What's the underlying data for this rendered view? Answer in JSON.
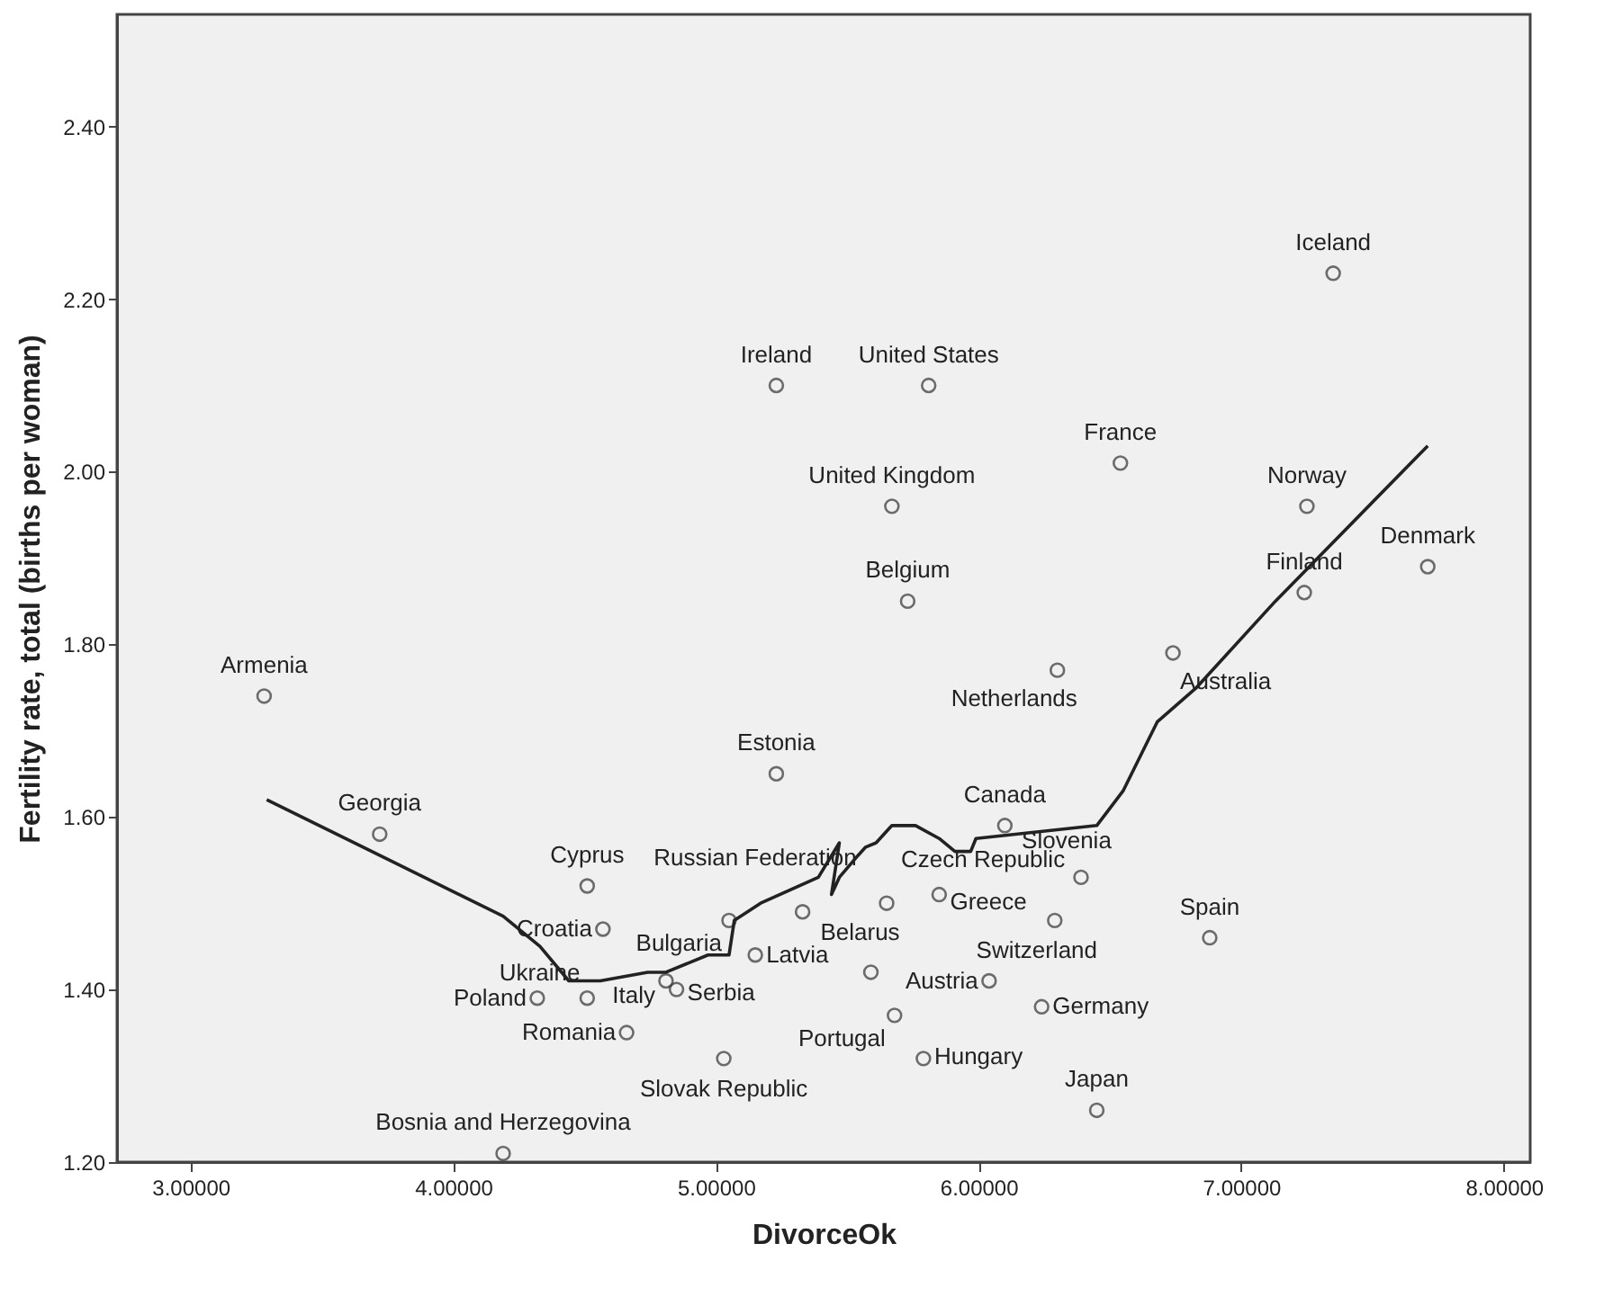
{
  "chart_data": {
    "type": "scatter",
    "xlabel": "DivorceOk",
    "ylabel": "Fertility rate, total (births per woman)",
    "xlim": [
      2.72,
      8.1
    ],
    "ylim": [
      1.2,
      2.53
    ],
    "xticks": [
      {
        "value": 3,
        "label": "3.00000"
      },
      {
        "value": 4,
        "label": "4.00000"
      },
      {
        "value": 5,
        "label": "5.00000"
      },
      {
        "value": 6,
        "label": "6.00000"
      },
      {
        "value": 7,
        "label": "7.00000"
      },
      {
        "value": 8,
        "label": "8.00000"
      }
    ],
    "yticks": [
      {
        "value": 1.2,
        "label": "1.20"
      },
      {
        "value": 1.4,
        "label": "1.40"
      },
      {
        "value": 1.6,
        "label": "1.60"
      },
      {
        "value": 1.8,
        "label": "1.80"
      },
      {
        "value": 2.0,
        "label": "2.00"
      },
      {
        "value": 2.2,
        "label": "2.20"
      },
      {
        "value": 2.4,
        "label": "2.40"
      }
    ],
    "grid": false,
    "marker": "circle",
    "series": [
      {
        "color": "#333333",
        "x": [
          3.28,
          3.72,
          4.51,
          4.57,
          4.19,
          4.32,
          4.51,
          5.05,
          4.81,
          4.85,
          4.66,
          5.03,
          5.15,
          5.33,
          5.23,
          5.65,
          5.85,
          6.29,
          5.59,
          6.04,
          5.68,
          5.79,
          6.24,
          6.45,
          6.1,
          6.39,
          6.3,
          6.88,
          6.74,
          7.35,
          5.23,
          5.81,
          6.54,
          5.67,
          7.25,
          7.71,
          7.24,
          5.73
        ],
        "values": [
          1.74,
          1.58,
          1.52,
          1.47,
          1.21,
          1.39,
          1.39,
          1.48,
          1.41,
          1.4,
          1.35,
          1.32,
          1.44,
          1.49,
          1.65,
          1.5,
          1.51,
          1.48,
          1.42,
          1.41,
          1.37,
          1.32,
          1.38,
          1.26,
          1.59,
          1.53,
          1.77,
          1.46,
          1.79,
          2.23,
          2.1,
          2.1,
          2.01,
          1.96,
          1.96,
          1.89,
          1.86,
          1.85
        ]
      },
      {
        "type": "line",
        "color": "#222222",
        "line_style": "solid",
        "marker": "none",
        "x": [
          3.29,
          3.69,
          4.19,
          4.33,
          4.44,
          4.56,
          4.74,
          4.81,
          4.97,
          5.05,
          5.07,
          5.17,
          5.39,
          5.47,
          5.44,
          5.47,
          5.54,
          5.57,
          5.61,
          5.67,
          5.76,
          5.85,
          5.91,
          5.97,
          5.99,
          6.45,
          6.55,
          6.68,
          6.83,
          7.13,
          7.71
        ],
        "values": [
          1.62,
          1.56,
          1.485,
          1.45,
          1.41,
          1.41,
          1.42,
          1.42,
          1.44,
          1.44,
          1.48,
          1.5,
          1.53,
          1.57,
          1.51,
          1.53,
          1.555,
          1.565,
          1.57,
          1.59,
          1.59,
          1.575,
          1.56,
          1.56,
          1.575,
          1.59,
          1.63,
          1.71,
          1.75,
          1.85,
          2.03
        ]
      }
    ],
    "annotations": [
      {
        "text": "Armenia",
        "x": 3.28,
        "y": 1.74
      },
      {
        "text": "Georgia",
        "x": 3.72,
        "y": 1.58
      },
      {
        "text": "Cyprus",
        "x": 4.51,
        "y": 1.52
      },
      {
        "text": "Croatia",
        "x": 4.57,
        "y": 1.47
      },
      {
        "text": "Bosnia and Herzegovina",
        "x": 4.19,
        "y": 1.21
      },
      {
        "text": "Poland",
        "x": 4.32,
        "y": 1.39
      },
      {
        "text": "Ukraine",
        "x": 4.51,
        "y": 1.39
      },
      {
        "text": "Bulgaria",
        "x": 5.05,
        "y": 1.48
      },
      {
        "text": "Italy",
        "x": 4.81,
        "y": 1.41
      },
      {
        "text": "Serbia",
        "x": 4.85,
        "y": 1.4
      },
      {
        "text": "Romania",
        "x": 4.66,
        "y": 1.35
      },
      {
        "text": "Slovak Republic",
        "x": 5.03,
        "y": 1.32
      },
      {
        "text": "Latvia",
        "x": 5.15,
        "y": 1.44
      },
      {
        "text": "Russian Federation",
        "x": 5.33,
        "y": 1.49
      },
      {
        "text": "Estonia",
        "x": 5.23,
        "y": 1.65
      },
      {
        "text": "Czech Republic",
        "x": 5.65,
        "y": 1.5
      },
      {
        "text": "Greece",
        "x": 5.85,
        "y": 1.51
      },
      {
        "text": "Switzerland",
        "x": 6.29,
        "y": 1.48
      },
      {
        "text": "Belarus",
        "x": 5.59,
        "y": 1.42
      },
      {
        "text": "Austria",
        "x": 6.04,
        "y": 1.41
      },
      {
        "text": "Portugal",
        "x": 5.68,
        "y": 1.37
      },
      {
        "text": "Hungary",
        "x": 5.79,
        "y": 1.32
      },
      {
        "text": "Germany",
        "x": 6.24,
        "y": 1.38
      },
      {
        "text": "Japan",
        "x": 6.45,
        "y": 1.26
      },
      {
        "text": "Canada",
        "x": 6.1,
        "y": 1.59
      },
      {
        "text": "Slovenia",
        "x": 6.39,
        "y": 1.53
      },
      {
        "text": "Netherlands",
        "x": 6.3,
        "y": 1.77
      },
      {
        "text": "Spain",
        "x": 6.88,
        "y": 1.46
      },
      {
        "text": "Australia",
        "x": 6.74,
        "y": 1.79
      },
      {
        "text": "Iceland",
        "x": 7.35,
        "y": 2.23
      },
      {
        "text": "Ireland",
        "x": 5.23,
        "y": 2.1
      },
      {
        "text": "United States",
        "x": 5.81,
        "y": 2.1
      },
      {
        "text": "France",
        "x": 6.54,
        "y": 2.01
      },
      {
        "text": "United Kingdom",
        "x": 5.67,
        "y": 1.96
      },
      {
        "text": "Norway",
        "x": 7.25,
        "y": 1.96
      },
      {
        "text": "Denmark",
        "x": 7.71,
        "y": 1.89
      },
      {
        "text": "Finland",
        "x": 7.24,
        "y": 1.86
      },
      {
        "text": "Belgium",
        "x": 5.73,
        "y": 1.85
      }
    ]
  }
}
